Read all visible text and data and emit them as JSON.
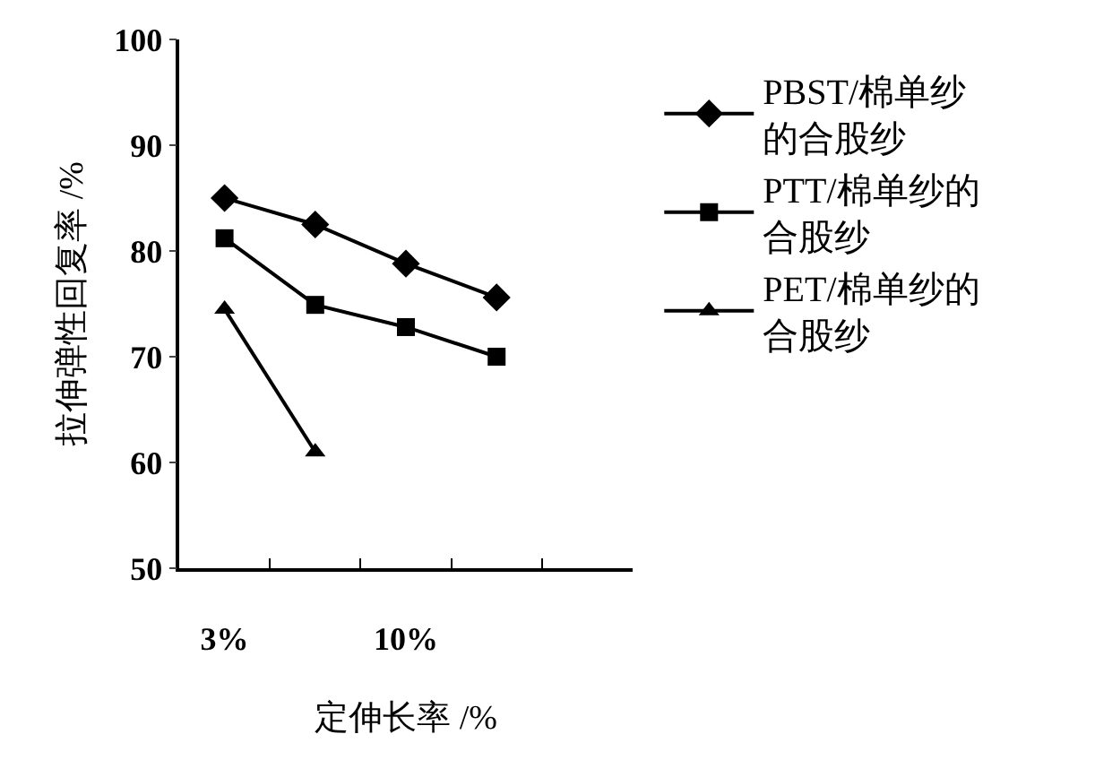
{
  "chart_data": {
    "type": "line",
    "xlabel": "定伸长率 /%",
    "ylabel": "拉伸弹性回复率 /%",
    "categories": [
      "3%",
      null,
      "10%",
      null,
      null
    ],
    "ylim": [
      50,
      100
    ],
    "yticks": [
      50,
      60,
      70,
      80,
      90,
      100
    ],
    "grid": false,
    "legend": "right",
    "series": [
      {
        "name": "PBST/棉单纱的合股纱",
        "color": "#000000",
        "marker": "diamond",
        "values": [
          85,
          82.5,
          78.8,
          75.6,
          null
        ]
      },
      {
        "name": "PTT/棉单纱的合股纱",
        "color": "#000000",
        "marker": "square",
        "values": [
          81.2,
          74.9,
          72.8,
          70,
          null
        ]
      },
      {
        "name": "PET/棉单纱的合股纱",
        "color": "#000000",
        "marker": "triangle",
        "values": [
          74.5,
          61,
          null,
          null,
          null
        ]
      }
    ]
  }
}
